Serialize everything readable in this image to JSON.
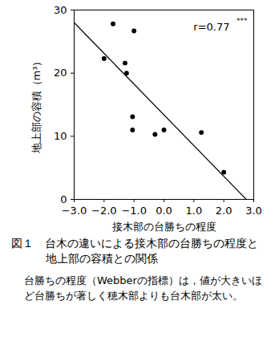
{
  "chart_data": {
    "type": "scatter",
    "x_label": "接木部の台勝ちの程度",
    "y_label": "地上部の容積（m³）",
    "x": [
      -2.0,
      -1.7,
      -1.3,
      -1.25,
      -1.0,
      -1.05,
      -1.05,
      -0.3,
      0.0,
      1.25,
      2.0
    ],
    "values": [
      22.3,
      27.8,
      21.6,
      20.0,
      26.7,
      13.1,
      11.0,
      10.3,
      11.0,
      10.6,
      4.3
    ],
    "color": "#000000",
    "marker": "circle",
    "xlim": [
      -3,
      3
    ],
    "ylim": [
      0,
      30
    ],
    "xticks": [
      -3,
      -2,
      -1,
      0,
      1,
      2,
      3
    ],
    "yticks": [
      0,
      10,
      20,
      30
    ],
    "trend_line": {
      "x": [
        -3,
        2.75
      ],
      "y": [
        28.0,
        0.0
      ]
    },
    "annotation": {
      "text": "r=0.77",
      "superscript": "***"
    },
    "caption": "図１　台木の違いによる接木部の台勝ちの程度と地上部の容積との関係",
    "note": "台勝ちの程度（Webberの指標）は，値が大きいほど台勝ちが著しく穂木部よりも台木部が太い。"
  }
}
